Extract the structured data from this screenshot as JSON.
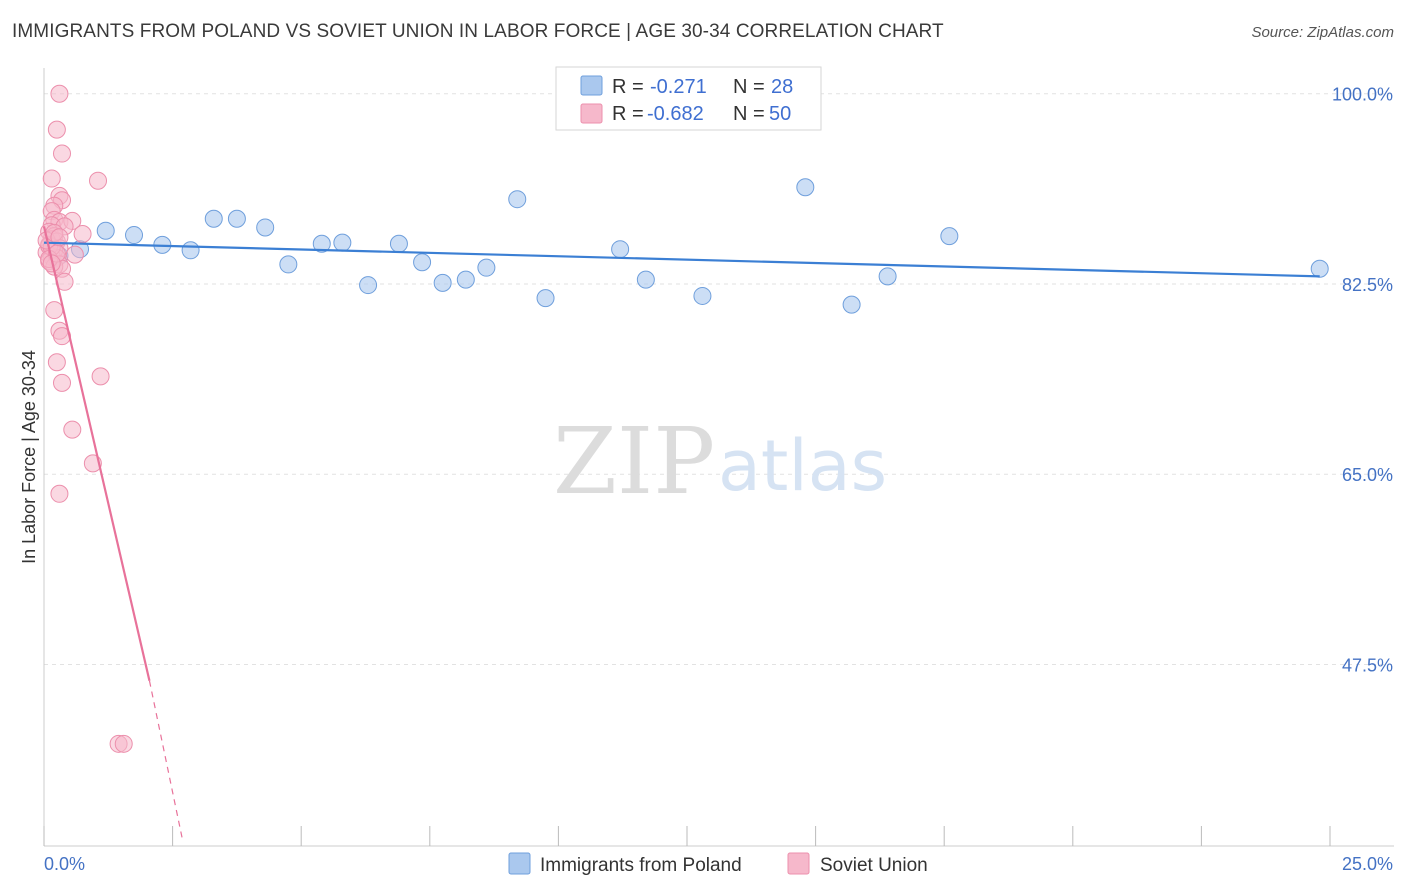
{
  "title": "IMMIGRANTS FROM POLAND VS SOVIET UNION IN LABOR FORCE | AGE 30-34 CORRELATION CHART",
  "source": "Source: ZipAtlas.com",
  "watermark": {
    "zip": "ZIP",
    "atlas": "atlas"
  },
  "colors": {
    "blue_fill": "#aac8ee",
    "blue_stroke": "#6f9fdc",
    "blue_line": "#3b7fd4",
    "pink_fill": "#f6b8cb",
    "pink_stroke": "#ec8fac",
    "pink_line": "#e8729a",
    "axis_text": "#4472c4",
    "grid": "#e2e2e2"
  },
  "legend_box": {
    "rows": [
      {
        "r_label": "R =",
        "r_value": "-0.271",
        "n_label": "N =",
        "n_value": "28",
        "series": "blue"
      },
      {
        "r_label": "R =",
        "r_value": "-0.682",
        "n_label": "N =",
        "n_value": "50",
        "series": "pink"
      }
    ]
  },
  "bottom_legend": [
    {
      "label": "Immigrants from Poland",
      "series": "blue"
    },
    {
      "label": "Soviet Union",
      "series": "pink"
    }
  ],
  "chart_data": {
    "type": "scatter",
    "title": "IMMIGRANTS FROM POLAND VS SOVIET UNION IN LABOR FORCE | AGE 30-34 CORRELATION CHART",
    "xlabel": "",
    "ylabel": "In Labor Force | Age 30-34",
    "xlim": [
      0,
      25
    ],
    "ylim": [
      30.8,
      102
    ],
    "x_tick_labels": [
      {
        "value": 0,
        "label": "0.0%"
      },
      {
        "value": 25,
        "label": "25.0%"
      }
    ],
    "y_ticks": [
      {
        "value": 100,
        "label": "100.0%"
      },
      {
        "value": 82.5,
        "label": "82.5%"
      },
      {
        "value": 65,
        "label": "65.0%"
      },
      {
        "value": 47.5,
        "label": "47.5%"
      }
    ],
    "series": [
      {
        "name": "Immigrants from Poland",
        "color": "blue",
        "points": [
          [
            0.3,
            85.1
          ],
          [
            0.7,
            85.7
          ],
          [
            1.2,
            87.4
          ],
          [
            1.75,
            87.0
          ],
          [
            2.3,
            86.1
          ],
          [
            2.85,
            85.6
          ],
          [
            3.3,
            88.5
          ],
          [
            3.75,
            88.5
          ],
          [
            4.3,
            87.7
          ],
          [
            4.75,
            84.3
          ],
          [
            5.4,
            86.2
          ],
          [
            5.8,
            86.3
          ],
          [
            6.3,
            82.4
          ],
          [
            6.9,
            86.2
          ],
          [
            7.35,
            84.5
          ],
          [
            7.75,
            82.6
          ],
          [
            8.2,
            82.9
          ],
          [
            8.6,
            84.0
          ],
          [
            9.2,
            90.3
          ],
          [
            9.75,
            81.2
          ],
          [
            11.2,
            85.7
          ],
          [
            11.7,
            82.9
          ],
          [
            12.8,
            81.4
          ],
          [
            14.8,
            91.4
          ],
          [
            15.7,
            80.6
          ],
          [
            16.4,
            83.2
          ],
          [
            17.6,
            86.9
          ],
          [
            24.8,
            83.9
          ]
        ],
        "trend": {
          "x0": 0,
          "y0": 86.3,
          "x1": 24.8,
          "y1": 83.2
        }
      },
      {
        "name": "Soviet Union",
        "color": "pink",
        "points": [
          [
            0.3,
            100.0
          ],
          [
            0.25,
            96.7
          ],
          [
            0.35,
            94.5
          ],
          [
            0.15,
            92.2
          ],
          [
            1.05,
            92.0
          ],
          [
            0.3,
            90.6
          ],
          [
            0.35,
            90.2
          ],
          [
            0.2,
            89.7
          ],
          [
            0.15,
            89.2
          ],
          [
            0.2,
            88.4
          ],
          [
            0.3,
            88.2
          ],
          [
            0.55,
            88.3
          ],
          [
            0.15,
            87.9
          ],
          [
            0.4,
            87.8
          ],
          [
            0.1,
            87.3
          ],
          [
            0.2,
            86.9
          ],
          [
            0.75,
            87.1
          ],
          [
            0.15,
            86.6
          ],
          [
            0.25,
            86.4
          ],
          [
            0.1,
            86.1
          ],
          [
            0.3,
            85.8
          ],
          [
            0.2,
            85.6
          ],
          [
            0.05,
            85.4
          ],
          [
            0.6,
            85.2
          ],
          [
            0.15,
            85.0
          ],
          [
            0.25,
            84.9
          ],
          [
            0.1,
            84.6
          ],
          [
            0.3,
            84.3
          ],
          [
            0.2,
            84.1
          ],
          [
            0.35,
            83.9
          ],
          [
            0.4,
            82.7
          ],
          [
            0.2,
            80.1
          ],
          [
            0.3,
            78.2
          ],
          [
            0.35,
            77.7
          ],
          [
            0.25,
            75.3
          ],
          [
            1.1,
            74.0
          ],
          [
            0.35,
            73.4
          ],
          [
            0.55,
            69.1
          ],
          [
            0.95,
            66.0
          ],
          [
            0.3,
            63.2
          ],
          [
            1.45,
            40.2
          ],
          [
            1.55,
            40.2
          ],
          [
            0.1,
            86.0
          ],
          [
            0.15,
            85.9
          ],
          [
            0.05,
            86.5
          ],
          [
            0.2,
            87.2
          ],
          [
            0.1,
            84.8
          ],
          [
            0.25,
            85.3
          ],
          [
            0.15,
            84.4
          ],
          [
            0.3,
            86.8
          ]
        ],
        "trend": {
          "x0": 0,
          "y0": 87.8,
          "x1": 2.05,
          "y1": 46.0
        },
        "trend_dashed": {
          "x0": 2.05,
          "y0": 46.0,
          "x1": 2.7,
          "y1": 31.2
        }
      }
    ]
  }
}
